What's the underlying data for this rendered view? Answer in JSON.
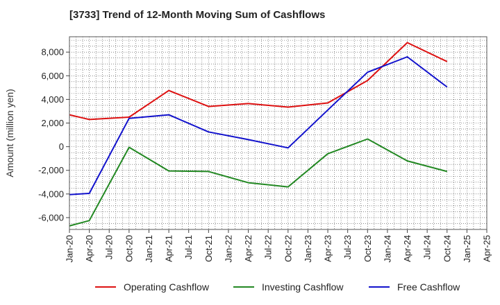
{
  "chart_data": {
    "type": "line",
    "title": "[3733]  Trend of 12-Month Moving Sum of Cashflows",
    "xlabel": "",
    "ylabel": "Amount (million yen)",
    "x_ticks": [
      "Jan-20",
      "Apr-20",
      "Jul-20",
      "Oct-20",
      "Jan-21",
      "Apr-21",
      "Jul-21",
      "Oct-21",
      "Jan-22",
      "Apr-22",
      "Jul-22",
      "Oct-22",
      "Jan-23",
      "Apr-23",
      "Jul-23",
      "Oct-23",
      "Jan-24",
      "Apr-24",
      "Jul-24",
      "Oct-24",
      "Jan-25",
      "Apr-25"
    ],
    "y_ticks": [
      -6000,
      -4000,
      -2000,
      0,
      2000,
      4000,
      6000,
      8000
    ],
    "y_tick_labels": [
      "-6,000",
      "-4,000",
      "-2,000",
      "0",
      "2,000",
      "4,000",
      "6,000",
      "8,000"
    ],
    "ylim": [
      -7000,
      9300
    ],
    "grid": true,
    "legend_position": "bottom",
    "series": [
      {
        "name": "Operating Cashflow",
        "color": "#dd1111",
        "points": [
          [
            "Jan-20",
            2700
          ],
          [
            "Apr-20",
            2300
          ],
          [
            "Oct-20",
            2500
          ],
          [
            "Apr-21",
            4750
          ],
          [
            "Oct-21",
            3400
          ],
          [
            "Apr-22",
            3650
          ],
          [
            "Oct-22",
            3350
          ],
          [
            "Apr-23",
            3700
          ],
          [
            "Oct-23",
            5600
          ],
          [
            "Apr-24",
            8800
          ],
          [
            "Oct-24",
            7200
          ]
        ]
      },
      {
        "name": "Investing Cashflow",
        "color": "#228822",
        "points": [
          [
            "Jan-20",
            -6700
          ],
          [
            "Apr-20",
            -6250
          ],
          [
            "Oct-20",
            -50
          ],
          [
            "Apr-21",
            -2050
          ],
          [
            "Oct-21",
            -2100
          ],
          [
            "Apr-22",
            -3050
          ],
          [
            "Oct-22",
            -3400
          ],
          [
            "Apr-23",
            -600
          ],
          [
            "Oct-23",
            650
          ],
          [
            "Apr-24",
            -1200
          ],
          [
            "Oct-24",
            -2100
          ]
        ]
      },
      {
        "name": "Free Cashflow",
        "color": "#1111cc",
        "points": [
          [
            "Jan-20",
            -4050
          ],
          [
            "Apr-20",
            -3950
          ],
          [
            "Oct-20",
            2400
          ],
          [
            "Apr-21",
            2700
          ],
          [
            "Oct-21",
            1250
          ],
          [
            "Apr-22",
            600
          ],
          [
            "Oct-22",
            -100
          ],
          [
            "Apr-23",
            3100
          ],
          [
            "Oct-23",
            6300
          ],
          [
            "Apr-24",
            7600
          ],
          [
            "Oct-24",
            5050
          ]
        ]
      }
    ]
  }
}
